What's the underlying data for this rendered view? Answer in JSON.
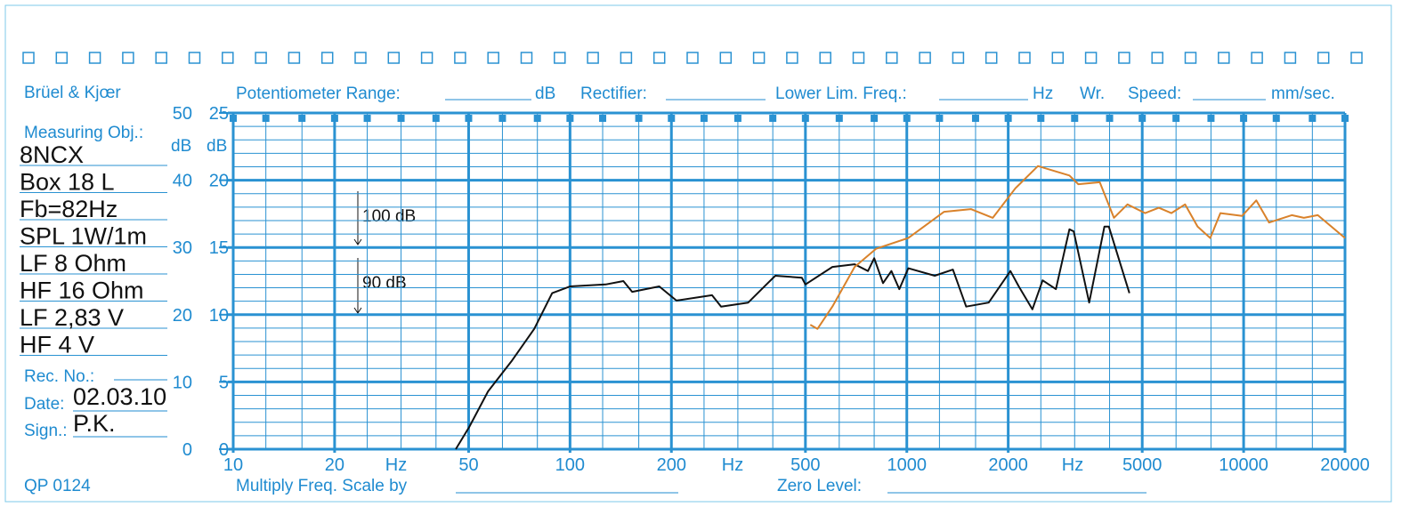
{
  "form": {
    "brand": "Brüel & Kjœr",
    "measuring_obj": "Measuring Obj.:",
    "notes": [
      "8NCX",
      "Box 18 L",
      "Fb=82Hz",
      "SPL 1W/1m",
      "LF 8 Ohm",
      "HF 16 Ohm",
      "LF 2,83 V",
      "HF 4 V"
    ],
    "rec_no": "Rec.  No.:",
    "date_label": "Date:",
    "date": "02.03.10",
    "sign_label": "Sign.:",
    "sign": "P.K.",
    "code": "QP  0124",
    "header": [
      "Potentiometer Range:",
      "dB",
      "Rectifier:",
      "Lower Lim. Freq.:",
      "Hz",
      "Wr.",
      "Speed:",
      "mm/sec."
    ],
    "footer": [
      "Multiply Freq. Scale by",
      "Zero Level:"
    ]
  },
  "chart_data": {
    "type": "line",
    "xscale": "log",
    "grid": true,
    "xlim": [
      10,
      20000
    ],
    "xticks": [
      10,
      20,
      50,
      100,
      200,
      500,
      1000,
      2000,
      5000,
      10000,
      20000
    ],
    "minor_xgrid": [
      12.5,
      16,
      25,
      31.5,
      40,
      63,
      80,
      125,
      160,
      250,
      315,
      400,
      630,
      800,
      1250,
      1600,
      2500,
      3150,
      4000,
      6300,
      8000,
      12500,
      16000
    ],
    "x_unit_labels": [
      "Hz",
      "Hz",
      "Hz"
    ],
    "ylim": [
      0,
      50
    ],
    "yticks": [
      0,
      10,
      20,
      30,
      40,
      50
    ],
    "minor_yticks": [
      2,
      4,
      6,
      8,
      12,
      14,
      16,
      18,
      22,
      24,
      26,
      28,
      32,
      34,
      36,
      38,
      42,
      44,
      46,
      48
    ],
    "y2lim": [
      0,
      25
    ],
    "y2ticks": [
      0,
      5,
      10,
      15,
      20,
      25
    ],
    "y_label": "dB",
    "y2_label": "dB",
    "annotations": [
      "100 dB",
      "90 dB"
    ],
    "series": [
      {
        "color": "#111111",
        "x": [
          45.8,
          50.2,
          57.1,
          67.3,
          78.3,
          88.5,
          100,
          127.6,
          144,
          153,
          184,
          207,
          264,
          281,
          338,
          383,
          407,
          488,
          500,
          601,
          700,
          767,
          800,
          850,
          900,
          950,
          1010,
          1210,
          1370,
          1500,
          1750,
          2030,
          2150,
          2360,
          2530,
          2770,
          3040,
          3130,
          3480,
          3860,
          3980,
          4580
        ],
        "values": [
          0,
          3.3,
          8.6,
          13.2,
          17.9,
          23.2,
          24.2,
          24.5,
          25,
          23.4,
          24.2,
          22.1,
          22.9,
          21.2,
          21.8,
          24.5,
          25.8,
          25.5,
          24.5,
          27.1,
          27.5,
          26.5,
          28.4,
          24.7,
          26.5,
          23.8,
          26.9,
          25.8,
          26.7,
          21.2,
          21.8,
          26.5,
          24.2,
          20.8,
          25.1,
          23.8,
          32.7,
          32.4,
          21.8,
          33.1,
          33.1,
          23.2
        ]
      },
      {
        "color": "#d9822b",
        "x": [
          517,
          543,
          601,
          700,
          810,
          1010,
          1290,
          1550,
          1800,
          2100,
          2450,
          3040,
          3230,
          3740,
          4120,
          4520,
          5100,
          5600,
          6100,
          6700,
          7300,
          7960,
          8530,
          9900,
          10900,
          11900,
          13900,
          15100,
          16600,
          20000
        ],
        "values": [
          18.5,
          17.9,
          21.2,
          27.1,
          29.8,
          31.4,
          35.3,
          35.7,
          34.4,
          38.8,
          42.1,
          40.7,
          39.4,
          39.7,
          34.4,
          36.4,
          35.1,
          35.9,
          35.1,
          36.4,
          33.1,
          31.4,
          35.1,
          34.7,
          37,
          33.7,
          34.8,
          34.4,
          34.8,
          31.4
        ]
      }
    ]
  }
}
